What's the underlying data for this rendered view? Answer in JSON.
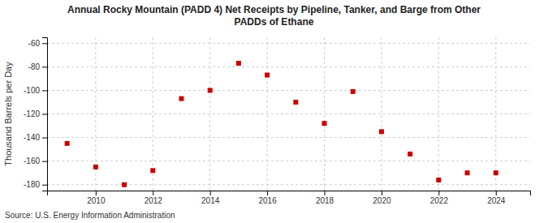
{
  "chart_data": {
    "type": "scatter",
    "title": "Annual Rocky Mountain (PADD 4) Net Receipts by Pipeline, Tanker, and Barge from Other\nPADDs of Ethane",
    "y_label": "Thousand Barrels per Day",
    "source": "Source: U.S. Energy Information Administration",
    "color": "#cc0000",
    "marker": "square",
    "x": [
      2009,
      2010,
      2011,
      2012,
      2013,
      2014,
      2015,
      2016,
      2017,
      2018,
      2019,
      2020,
      2021,
      2022,
      2023,
      2024
    ],
    "values": [
      -145,
      -165,
      -180,
      -168,
      -107,
      -100,
      -77,
      -87,
      -110,
      -128,
      -101,
      -135,
      -154,
      -176,
      -170,
      -170
    ],
    "xlim": [
      2008.3,
      2025.2
    ],
    "xticks": [
      2010,
      2012,
      2014,
      2016,
      2018,
      2020,
      2022,
      2024
    ],
    "ylim": [
      -185,
      -55
    ],
    "yticks": [
      -180,
      -160,
      -140,
      -120,
      -100,
      -80,
      -60
    ],
    "grid": true
  }
}
